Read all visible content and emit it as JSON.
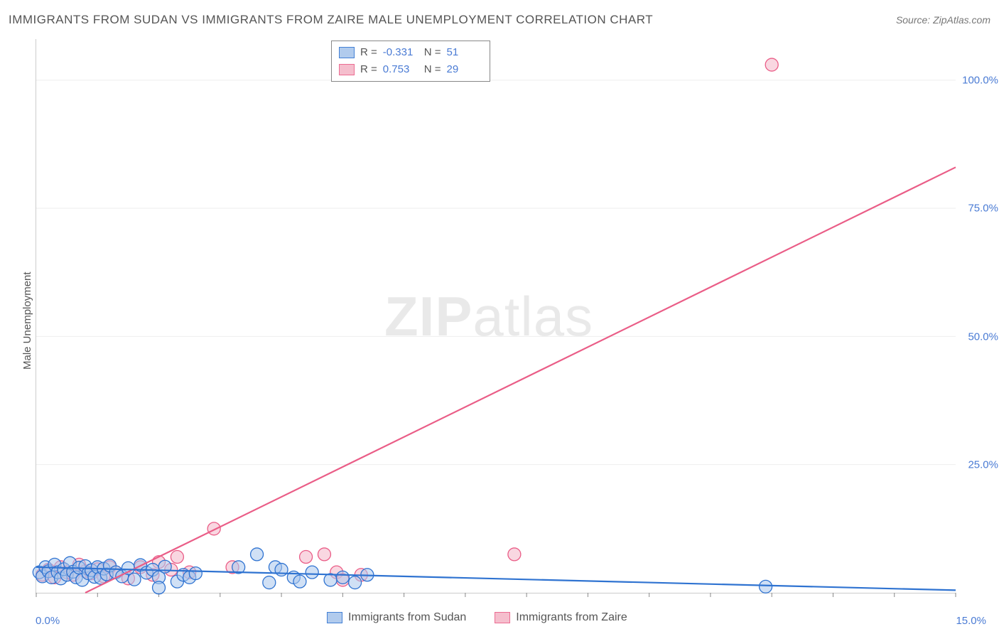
{
  "header": {
    "title": "IMMIGRANTS FROM SUDAN VS IMMIGRANTS FROM ZAIRE MALE UNEMPLOYMENT CORRELATION CHART",
    "source": "Source: ZipAtlas.com"
  },
  "watermark": {
    "zip": "ZIP",
    "atlas": "atlas"
  },
  "chart": {
    "type": "scatter",
    "ylabel": "Male Unemployment",
    "xlim": [
      0,
      15
    ],
    "ylim": [
      0,
      108
    ],
    "x_ticks_label_left": "0.0%",
    "x_ticks_label_right": "15.0%",
    "y_tick_labels": [
      "25.0%",
      "50.0%",
      "75.0%",
      "100.0%"
    ],
    "y_tick_values": [
      25,
      50,
      75,
      100
    ],
    "x_minor_ticks": [
      0,
      1,
      2,
      3,
      4,
      5,
      6,
      7,
      8,
      9,
      10,
      11,
      12,
      13,
      14,
      15
    ],
    "grid_color": "#eeeeee",
    "axis_color": "#cccccc",
    "background_color": "#ffffff",
    "series": [
      {
        "name": "Immigrants from Sudan",
        "label": "Immigrants from Sudan",
        "fill": "#a9c6ec",
        "stroke": "#2f73d1",
        "fill_opacity": 0.55,
        "marker_radius": 9,
        "line_width": 2.2,
        "R": "-0.331",
        "N": "51",
        "trend": {
          "x1": 0,
          "y1": 5.0,
          "x2": 15,
          "y2": 0.5
        },
        "points": [
          [
            0.05,
            4.0
          ],
          [
            0.1,
            3.2
          ],
          [
            0.15,
            5.0
          ],
          [
            0.2,
            4.2
          ],
          [
            0.25,
            3.0
          ],
          [
            0.3,
            5.5
          ],
          [
            0.35,
            4.0
          ],
          [
            0.4,
            2.8
          ],
          [
            0.45,
            4.6
          ],
          [
            0.5,
            3.5
          ],
          [
            0.55,
            5.8
          ],
          [
            0.6,
            4.1
          ],
          [
            0.65,
            3.0
          ],
          [
            0.7,
            4.9
          ],
          [
            0.75,
            2.5
          ],
          [
            0.8,
            5.2
          ],
          [
            0.85,
            3.8
          ],
          [
            0.9,
            4.4
          ],
          [
            0.95,
            3.1
          ],
          [
            1.0,
            5.0
          ],
          [
            1.05,
            2.9
          ],
          [
            1.1,
            4.7
          ],
          [
            1.15,
            3.6
          ],
          [
            1.2,
            5.3
          ],
          [
            1.3,
            4.0
          ],
          [
            1.4,
            3.2
          ],
          [
            1.5,
            4.8
          ],
          [
            1.6,
            2.6
          ],
          [
            1.7,
            5.4
          ],
          [
            1.8,
            3.9
          ],
          [
            1.9,
            4.5
          ],
          [
            2.0,
            3.0
          ],
          [
            2.1,
            5.1
          ],
          [
            2.3,
            2.2
          ],
          [
            2.4,
            3.5
          ],
          [
            2.5,
            3.0
          ],
          [
            2.6,
            3.8
          ],
          [
            3.3,
            5.0
          ],
          [
            3.6,
            7.5
          ],
          [
            3.8,
            2.0
          ],
          [
            3.9,
            5.0
          ],
          [
            4.0,
            4.5
          ],
          [
            4.2,
            3.0
          ],
          [
            4.3,
            2.2
          ],
          [
            4.5,
            4.0
          ],
          [
            4.8,
            2.5
          ],
          [
            5.0,
            3.0
          ],
          [
            5.2,
            2.0
          ],
          [
            5.4,
            3.5
          ],
          [
            11.9,
            1.2
          ],
          [
            2.0,
            1.0
          ]
        ]
      },
      {
        "name": "Immigrants from Zaire",
        "label": "Immigrants from Zaire",
        "fill": "#f4b7c8",
        "stroke": "#ea5d87",
        "fill_opacity": 0.55,
        "marker_radius": 9,
        "line_width": 2.2,
        "R": "0.753",
        "N": "29",
        "trend": {
          "x1": 0.8,
          "y1": 0.0,
          "x2": 15,
          "y2": 83.0
        },
        "points": [
          [
            0.1,
            3.5
          ],
          [
            0.2,
            4.5
          ],
          [
            0.3,
            3.0
          ],
          [
            0.4,
            5.0
          ],
          [
            0.5,
            4.0
          ],
          [
            0.6,
            3.5
          ],
          [
            0.7,
            5.5
          ],
          [
            0.8,
            4.2
          ],
          [
            0.9,
            3.8
          ],
          [
            1.0,
            4.6
          ],
          [
            1.1,
            3.2
          ],
          [
            1.2,
            5.0
          ],
          [
            1.3,
            4.0
          ],
          [
            1.5,
            2.8
          ],
          [
            1.7,
            5.0
          ],
          [
            1.9,
            3.5
          ],
          [
            2.0,
            6.0
          ],
          [
            2.2,
            4.5
          ],
          [
            2.3,
            7.0
          ],
          [
            2.5,
            4.0
          ],
          [
            2.9,
            12.5
          ],
          [
            3.2,
            5.0
          ],
          [
            4.4,
            7.0
          ],
          [
            4.7,
            7.5
          ],
          [
            4.9,
            4.0
          ],
          [
            5.0,
            2.5
          ],
          [
            5.3,
            3.5
          ],
          [
            7.8,
            7.5
          ],
          [
            12.0,
            103.0
          ]
        ]
      }
    ],
    "legend_box": {
      "R_label": "R =",
      "N_label": "N ="
    },
    "axis_label_color": "#4a7bd4",
    "text_color": "#555555",
    "title_fontsize": 17,
    "label_fontsize": 15
  }
}
